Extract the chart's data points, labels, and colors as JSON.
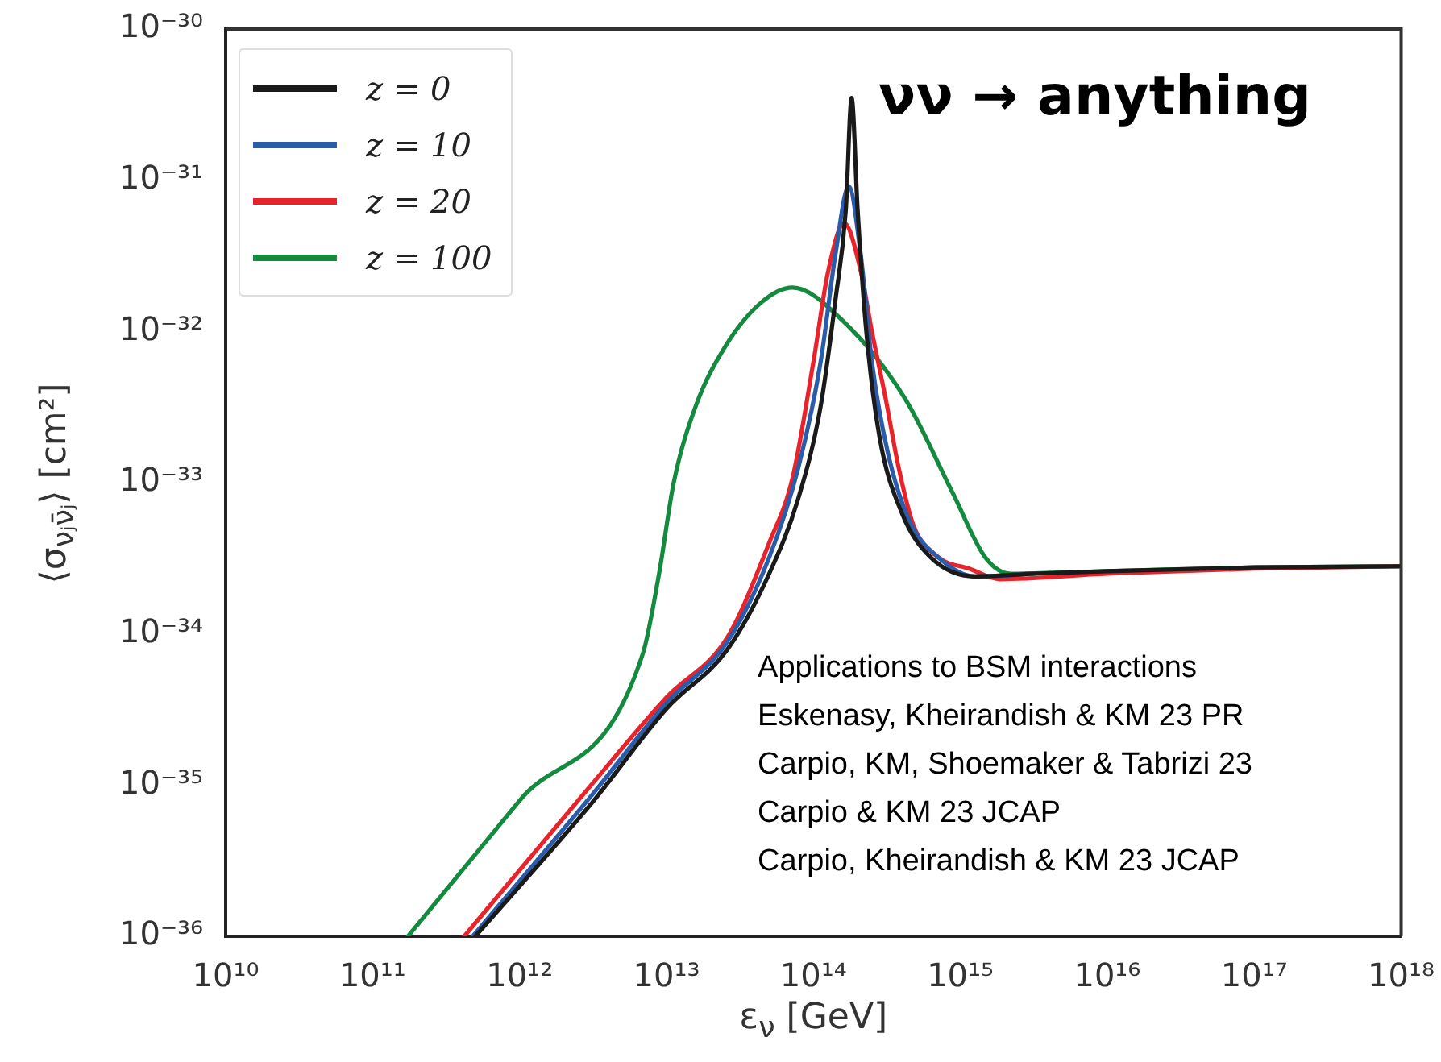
{
  "chart_data": {
    "type": "line",
    "xlabel": "ε$_{ν}$ [GeV]",
    "ylabel": "⟨σ$_{νⱼν̄ⱼ}$⟩ [cm²]",
    "log": "xy",
    "grid": false,
    "legend": "top left",
    "marker": "none",
    "line_style": "solid",
    "xlim": [
      10000000000.0,
      1e+18
    ],
    "ylim": [
      1e-36,
      1e-30
    ],
    "xticks": [
      {
        "value": 10000000000.0,
        "label": "10¹⁰"
      },
      {
        "value": 100000000000.0,
        "label": "10¹¹"
      },
      {
        "value": 1000000000000.0,
        "label": "10¹²"
      },
      {
        "value": 10000000000000.0,
        "label": "10¹³"
      },
      {
        "value": 100000000000000.0,
        "label": "10¹⁴"
      },
      {
        "value": 1000000000000000.0,
        "label": "10¹⁵"
      },
      {
        "value": 1e+16,
        "label": "10¹⁶"
      },
      {
        "value": 1e+17,
        "label": "10¹⁷"
      },
      {
        "value": 1e+18,
        "label": "10¹⁸"
      }
    ],
    "yticks": [
      {
        "value": 1e-36,
        "label": "10⁻³⁶"
      },
      {
        "value": 1e-35,
        "label": "10⁻³⁵"
      },
      {
        "value": 1e-34,
        "label": "10⁻³⁴"
      },
      {
        "value": 1e-33,
        "label": "10⁻³³"
      },
      {
        "value": 1e-32,
        "label": "10⁻³²"
      },
      {
        "value": 1e-31,
        "label": "10⁻³¹"
      },
      {
        "value": 1e-30,
        "label": "10⁻³⁰"
      }
    ],
    "annotations": [
      "νν → anything",
      "Applications to BSM interactions",
      "Eskenasy, Kheirandish & KM 23 PR",
      "Carpio, KM, Shoemaker & Tabrizi 23",
      "Carpio & KM 23 JCAP",
      "Carpio, Kheirandish & KM 23 JCAP"
    ],
    "series": [
      {
        "name": "z = 0",
        "color": "#1a1a1a",
        "x": [
          500000000000.0,
          3200000000000.0,
          10000000000000.0,
          26000000000000.0,
          50000000000000.0,
          79000000000000.0,
          112000000000000.0,
          141000000000000.0,
          166000000000000.0,
          182000000000000.0,
          200000000000000.0,
          229000000000000.0,
          282000000000000.0,
          400000000000000.0,
          630000000000000.0,
          1260000000000000.0,
          3200000000000000.0,
          1e+16,
          1e+17,
          1e+18
        ],
        "values": [
          1e-36,
          7.9e-36,
          3.2e-35,
          7.9e-35,
          2.5e-34,
          7.9e-34,
          3.2e-33,
          1.6e-32,
          6.3e-32,
          3.5e-31,
          6.3e-32,
          1e-32,
          2e-33,
          6.3e-34,
          3.2e-34,
          2.4e-34,
          2.5e-34,
          2.6e-34,
          2.75e-34,
          2.8e-34
        ]
      },
      {
        "name": "z = 10",
        "color": "#2a5caa",
        "x": [
          480000000000.0,
          3200000000000.0,
          10000000000000.0,
          26000000000000.0,
          50000000000000.0,
          79000000000000.0,
          112000000000000.0,
          141000000000000.0,
          174000000000000.0,
          210000000000000.0,
          250000000000000.0,
          320000000000000.0,
          450000000000000.0,
          710000000000000.0,
          1260000000000000.0,
          3200000000000000.0
        ],
        "values": [
          1e-36,
          8.9e-36,
          3.5e-35,
          8.9e-35,
          3.2e-34,
          1.26e-33,
          6.3e-33,
          3.2e-32,
          9.1e-32,
          3.2e-32,
          6.3e-33,
          1.6e-33,
          5.6e-34,
          3.2e-34,
          2.4e-34,
          2.5e-34
        ]
      },
      {
        "name": "z = 20",
        "color": "#e8232a",
        "x": [
          420000000000.0,
          3200000000000.0,
          10000000000000.0,
          26000000000000.0,
          50000000000000.0,
          72000000000000.0,
          100000000000000.0,
          126000000000000.0,
          162000000000000.0,
          210000000000000.0,
          250000000000000.0,
          310000000000000.0,
          380000000000000.0,
          480000000000000.0,
          710000000000000.0,
          1150000000000000.0,
          1860000000000000.0,
          1e+16,
          1e+17,
          1e+18
        ],
        "values": [
          1e-36,
          1.05e-35,
          3.8e-35,
          9.5e-35,
          4e-34,
          1.07e-33,
          6.3e-33,
          2.5e-32,
          5.2e-32,
          2.5e-32,
          1e-32,
          3.6e-33,
          1.26e-33,
          5.2e-34,
          3.2e-34,
          2.7e-34,
          2.3e-34,
          2.5e-34,
          2.7e-34,
          2.8e-34
        ]
      },
      {
        "name": "z = 100",
        "color": "#138a3e",
        "x": [
          174000000000.0,
          1000000000000.0,
          6900000000000.0,
          8900000000000.0,
          11200000000000.0,
          15800000000000.0,
          25000000000000.0,
          44000000000000.0,
          72000000000000.0,
          155000000000000.0,
          420000000000000.0,
          890000000000000.0,
          1480000000000000.0,
          2200000000000000.0,
          1e+16,
          1e+17,
          1e+18
        ],
        "values": [
          1e-36,
          7.9e-36,
          7.4e-35,
          2.5e-34,
          1e-33,
          3.2e-33,
          7.9e-33,
          1.55e-32,
          1.95e-32,
          1.2e-32,
          3.6e-33,
          8.5e-34,
          3.2e-34,
          2.5e-34,
          2.6e-34,
          2.75e-34,
          2.8e-34
        ]
      }
    ]
  }
}
